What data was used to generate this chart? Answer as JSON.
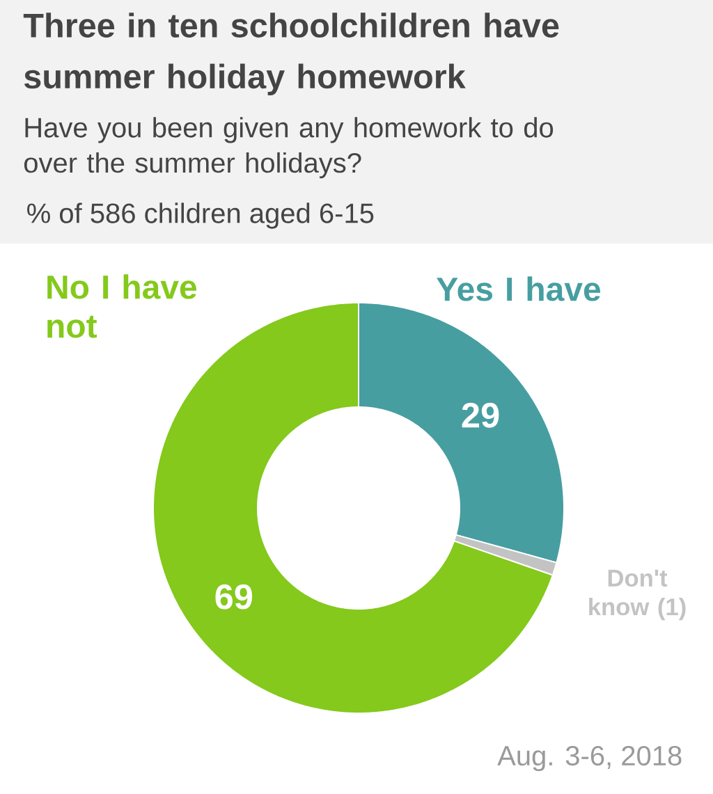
{
  "chart_data": {
    "type": "donut",
    "title": "Three in ten schoolchildren have summer holiday homework",
    "subtitle": "Have you been given any homework to do over the summer holidays?",
    "categories": [
      "Yes I have",
      "Don't know (1)",
      "No I have not"
    ],
    "values": [
      29,
      1,
      69
    ],
    "colors": [
      "#479ea0",
      "#c3c3c3",
      "#84c91b"
    ],
    "value_labels": [
      "29",
      null,
      "69"
    ],
    "legend": false,
    "annotations": [
      "% of 586 children aged 6-15",
      "Aug. 3-6, 2018"
    ]
  }
}
